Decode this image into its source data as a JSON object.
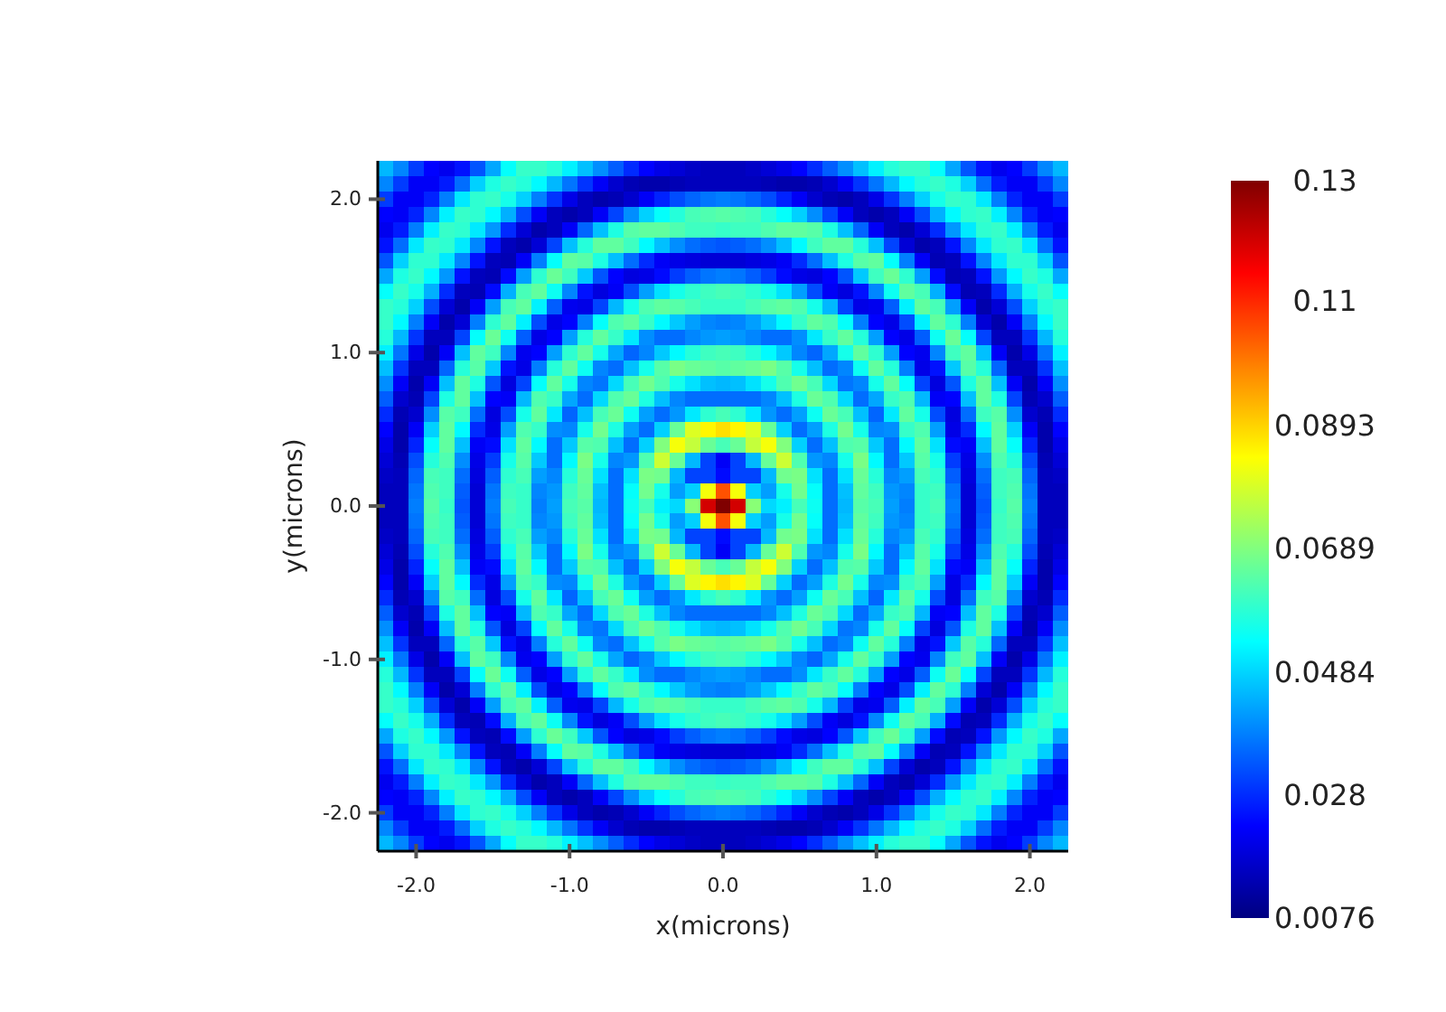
{
  "chart_data": {
    "type": "heatmap",
    "xlabel": "x(microns)",
    "ylabel": "y(microns)",
    "xlim": [
      -2.25,
      2.25
    ],
    "ylim": [
      -2.25,
      2.25
    ],
    "xticks": [
      {
        "value": -2,
        "label": "-2.0"
      },
      {
        "value": -1,
        "label": "-1.0"
      },
      {
        "value": 0,
        "label": "0.0"
      },
      {
        "value": 1,
        "label": "1.0"
      },
      {
        "value": 2,
        "label": "2.0"
      }
    ],
    "yticks": [
      {
        "value": -2,
        "label": "-2.0"
      },
      {
        "value": -1,
        "label": "-1.0"
      },
      {
        "value": 0,
        "label": "0.0"
      },
      {
        "value": 1,
        "label": "1.0"
      },
      {
        "value": 2,
        "label": "2.0"
      }
    ],
    "clim": [
      0.0076,
      0.13
    ],
    "cticks": [
      0.0076,
      0.028,
      0.0484,
      0.0689,
      0.0893,
      0.11,
      0.13
    ],
    "cells": [
      [
        0.045,
        0.039,
        0.03,
        0.023,
        0.021,
        0.025,
        0.033,
        0.043,
        0.054,
        0.06,
        0.06,
        0.058,
        0.052,
        0.046,
        0.04,
        0.034,
        0.028,
        0.023,
        0.02,
        0.018,
        0.016,
        0.015,
        0.015,
        0.015,
        0.016,
        0.018,
        0.02,
        0.023,
        0.028,
        0.034,
        0.04,
        0.046,
        0.052,
        0.058,
        0.06,
        0.06,
        0.054,
        0.043,
        0.033,
        0.025,
        0.021,
        0.023,
        0.03,
        0.039,
        0.045
      ],
      [
        0.039,
        0.03,
        0.022,
        0.022,
        0.026,
        0.036,
        0.048,
        0.057,
        0.06,
        0.058,
        0.053,
        0.045,
        0.037,
        0.029,
        0.022,
        0.017,
        0.014,
        0.013,
        0.013,
        0.014,
        0.015,
        0.015,
        0.015,
        0.015,
        0.015,
        0.014,
        0.013,
        0.013,
        0.014,
        0.017,
        0.022,
        0.029,
        0.037,
        0.045,
        0.053,
        0.058,
        0.06,
        0.057,
        0.048,
        0.036,
        0.026,
        0.022,
        0.022,
        0.03,
        0.039
      ],
      [
        0.03,
        0.022,
        0.022,
        0.027,
        0.038,
        0.051,
        0.059,
        0.06,
        0.056,
        0.048,
        0.038,
        0.029,
        0.02,
        0.015,
        0.013,
        0.014,
        0.017,
        0.022,
        0.027,
        0.032,
        0.035,
        0.037,
        0.038,
        0.037,
        0.035,
        0.032,
        0.027,
        0.022,
        0.017,
        0.014,
        0.013,
        0.015,
        0.02,
        0.029,
        0.038,
        0.048,
        0.056,
        0.06,
        0.059,
        0.051,
        0.038,
        0.027,
        0.022,
        0.022,
        0.03
      ],
      [
        0.023,
        0.022,
        0.027,
        0.039,
        0.052,
        0.06,
        0.059,
        0.053,
        0.044,
        0.032,
        0.022,
        0.015,
        0.013,
        0.015,
        0.022,
        0.031,
        0.04,
        0.048,
        0.054,
        0.058,
        0.062,
        0.063,
        0.064,
        0.063,
        0.062,
        0.058,
        0.054,
        0.048,
        0.04,
        0.031,
        0.022,
        0.015,
        0.013,
        0.015,
        0.022,
        0.032,
        0.044,
        0.053,
        0.059,
        0.06,
        0.052,
        0.039,
        0.027,
        0.022,
        0.023
      ],
      [
        0.021,
        0.026,
        0.038,
        0.052,
        0.06,
        0.059,
        0.051,
        0.041,
        0.028,
        0.018,
        0.013,
        0.015,
        0.022,
        0.035,
        0.046,
        0.057,
        0.064,
        0.065,
        0.065,
        0.063,
        0.061,
        0.061,
        0.06,
        0.061,
        0.061,
        0.063,
        0.065,
        0.065,
        0.064,
        0.057,
        0.046,
        0.035,
        0.022,
        0.015,
        0.013,
        0.018,
        0.028,
        0.041,
        0.051,
        0.059,
        0.06,
        0.052,
        0.038,
        0.026,
        0.021
      ],
      [
        0.025,
        0.036,
        0.051,
        0.06,
        0.059,
        0.051,
        0.039,
        0.025,
        0.015,
        0.013,
        0.018,
        0.031,
        0.046,
        0.058,
        0.065,
        0.065,
        0.061,
        0.053,
        0.046,
        0.04,
        0.036,
        0.034,
        0.033,
        0.034,
        0.036,
        0.04,
        0.046,
        0.053,
        0.061,
        0.065,
        0.065,
        0.058,
        0.046,
        0.031,
        0.018,
        0.013,
        0.015,
        0.025,
        0.039,
        0.051,
        0.059,
        0.06,
        0.051,
        0.036,
        0.025
      ],
      [
        0.033,
        0.048,
        0.059,
        0.059,
        0.051,
        0.039,
        0.025,
        0.015,
        0.014,
        0.022,
        0.038,
        0.054,
        0.065,
        0.064,
        0.057,
        0.046,
        0.036,
        0.028,
        0.022,
        0.02,
        0.019,
        0.018,
        0.018,
        0.018,
        0.019,
        0.02,
        0.022,
        0.028,
        0.036,
        0.046,
        0.057,
        0.064,
        0.065,
        0.054,
        0.038,
        0.022,
        0.014,
        0.015,
        0.025,
        0.039,
        0.051,
        0.059,
        0.059,
        0.048,
        0.033
      ],
      [
        0.043,
        0.057,
        0.06,
        0.053,
        0.041,
        0.025,
        0.015,
        0.014,
        0.024,
        0.042,
        0.059,
        0.066,
        0.061,
        0.047,
        0.033,
        0.023,
        0.019,
        0.02,
        0.024,
        0.03,
        0.034,
        0.037,
        0.038,
        0.037,
        0.034,
        0.03,
        0.024,
        0.02,
        0.019,
        0.023,
        0.033,
        0.047,
        0.061,
        0.066,
        0.059,
        0.042,
        0.024,
        0.014,
        0.015,
        0.025,
        0.041,
        0.053,
        0.06,
        0.057,
        0.043
      ],
      [
        0.054,
        0.06,
        0.056,
        0.044,
        0.028,
        0.015,
        0.014,
        0.024,
        0.044,
        0.062,
        0.065,
        0.055,
        0.039,
        0.025,
        0.019,
        0.022,
        0.032,
        0.042,
        0.05,
        0.056,
        0.059,
        0.061,
        0.062,
        0.061,
        0.059,
        0.056,
        0.05,
        0.042,
        0.032,
        0.022,
        0.019,
        0.025,
        0.039,
        0.055,
        0.065,
        0.062,
        0.044,
        0.024,
        0.014,
        0.015,
        0.028,
        0.044,
        0.056,
        0.06,
        0.054
      ],
      [
        0.06,
        0.058,
        0.048,
        0.032,
        0.018,
        0.013,
        0.022,
        0.042,
        0.062,
        0.065,
        0.052,
        0.034,
        0.021,
        0.02,
        0.031,
        0.045,
        0.056,
        0.063,
        0.065,
        0.064,
        0.062,
        0.06,
        0.06,
        0.06,
        0.062,
        0.064,
        0.065,
        0.063,
        0.056,
        0.045,
        0.031,
        0.02,
        0.021,
        0.034,
        0.052,
        0.065,
        0.062,
        0.042,
        0.022,
        0.013,
        0.018,
        0.032,
        0.048,
        0.058,
        0.06
      ],
      [
        0.06,
        0.053,
        0.038,
        0.022,
        0.013,
        0.018,
        0.038,
        0.059,
        0.065,
        0.052,
        0.032,
        0.02,
        0.023,
        0.038,
        0.054,
        0.063,
        0.065,
        0.06,
        0.053,
        0.047,
        0.042,
        0.039,
        0.038,
        0.039,
        0.042,
        0.047,
        0.053,
        0.06,
        0.065,
        0.063,
        0.054,
        0.038,
        0.023,
        0.02,
        0.032,
        0.052,
        0.065,
        0.059,
        0.038,
        0.018,
        0.013,
        0.022,
        0.038,
        0.053,
        0.06
      ],
      [
        0.058,
        0.045,
        0.029,
        0.015,
        0.015,
        0.031,
        0.054,
        0.066,
        0.055,
        0.034,
        0.02,
        0.023,
        0.042,
        0.058,
        0.065,
        0.06,
        0.051,
        0.04,
        0.036,
        0.036,
        0.039,
        0.041,
        0.042,
        0.041,
        0.039,
        0.036,
        0.036,
        0.04,
        0.051,
        0.06,
        0.065,
        0.058,
        0.042,
        0.023,
        0.02,
        0.034,
        0.055,
        0.066,
        0.054,
        0.031,
        0.015,
        0.015,
        0.029,
        0.045,
        0.058
      ],
      [
        0.052,
        0.037,
        0.02,
        0.013,
        0.022,
        0.046,
        0.065,
        0.061,
        0.039,
        0.021,
        0.023,
        0.042,
        0.059,
        0.065,
        0.056,
        0.043,
        0.035,
        0.039,
        0.047,
        0.053,
        0.058,
        0.061,
        0.062,
        0.061,
        0.058,
        0.053,
        0.047,
        0.039,
        0.035,
        0.043,
        0.056,
        0.065,
        0.059,
        0.042,
        0.023,
        0.021,
        0.039,
        0.061,
        0.065,
        0.046,
        0.022,
        0.013,
        0.02,
        0.037,
        0.052
      ],
      [
        0.046,
        0.029,
        0.015,
        0.015,
        0.035,
        0.058,
        0.064,
        0.047,
        0.025,
        0.02,
        0.038,
        0.058,
        0.065,
        0.055,
        0.039,
        0.036,
        0.046,
        0.056,
        0.064,
        0.068,
        0.066,
        0.065,
        0.064,
        0.065,
        0.066,
        0.068,
        0.064,
        0.056,
        0.046,
        0.036,
        0.039,
        0.055,
        0.065,
        0.058,
        0.038,
        0.02,
        0.025,
        0.047,
        0.064,
        0.058,
        0.035,
        0.015,
        0.015,
        0.029,
        0.046
      ],
      [
        0.04,
        0.022,
        0.013,
        0.022,
        0.046,
        0.065,
        0.057,
        0.033,
        0.019,
        0.031,
        0.054,
        0.065,
        0.056,
        0.039,
        0.037,
        0.049,
        0.062,
        0.067,
        0.063,
        0.056,
        0.05,
        0.046,
        0.045,
        0.046,
        0.05,
        0.056,
        0.063,
        0.067,
        0.062,
        0.049,
        0.037,
        0.039,
        0.056,
        0.065,
        0.054,
        0.031,
        0.019,
        0.033,
        0.057,
        0.065,
        0.046,
        0.022,
        0.013,
        0.022,
        0.04
      ],
      [
        0.034,
        0.017,
        0.014,
        0.031,
        0.057,
        0.065,
        0.046,
        0.023,
        0.022,
        0.045,
        0.063,
        0.06,
        0.043,
        0.036,
        0.049,
        0.063,
        0.066,
        0.057,
        0.046,
        0.039,
        0.036,
        0.036,
        0.036,
        0.036,
        0.036,
        0.039,
        0.046,
        0.057,
        0.066,
        0.063,
        0.049,
        0.036,
        0.043,
        0.06,
        0.063,
        0.045,
        0.022,
        0.023,
        0.046,
        0.065,
        0.057,
        0.031,
        0.014,
        0.017,
        0.034
      ],
      [
        0.028,
        0.014,
        0.017,
        0.04,
        0.064,
        0.061,
        0.036,
        0.019,
        0.032,
        0.056,
        0.065,
        0.051,
        0.035,
        0.046,
        0.062,
        0.066,
        0.055,
        0.042,
        0.036,
        0.041,
        0.051,
        0.059,
        0.062,
        0.059,
        0.051,
        0.041,
        0.036,
        0.042,
        0.055,
        0.066,
        0.062,
        0.046,
        0.035,
        0.051,
        0.065,
        0.056,
        0.032,
        0.019,
        0.036,
        0.061,
        0.064,
        0.04,
        0.017,
        0.014,
        0.028
      ],
      [
        0.023,
        0.013,
        0.022,
        0.048,
        0.065,
        0.053,
        0.028,
        0.02,
        0.042,
        0.063,
        0.06,
        0.04,
        0.039,
        0.056,
        0.067,
        0.057,
        0.042,
        0.036,
        0.048,
        0.066,
        0.08,
        0.085,
        0.088,
        0.085,
        0.08,
        0.066,
        0.048,
        0.036,
        0.042,
        0.057,
        0.067,
        0.056,
        0.039,
        0.04,
        0.06,
        0.063,
        0.042,
        0.02,
        0.028,
        0.053,
        0.065,
        0.048,
        0.022,
        0.013,
        0.023
      ],
      [
        0.02,
        0.013,
        0.027,
        0.054,
        0.065,
        0.046,
        0.022,
        0.024,
        0.05,
        0.065,
        0.053,
        0.036,
        0.047,
        0.064,
        0.063,
        0.046,
        0.036,
        0.048,
        0.069,
        0.083,
        0.077,
        0.066,
        0.062,
        0.066,
        0.077,
        0.083,
        0.069,
        0.048,
        0.036,
        0.046,
        0.063,
        0.064,
        0.047,
        0.036,
        0.053,
        0.065,
        0.05,
        0.024,
        0.022,
        0.046,
        0.065,
        0.054,
        0.027,
        0.013,
        0.02
      ],
      [
        0.018,
        0.014,
        0.032,
        0.058,
        0.063,
        0.04,
        0.02,
        0.03,
        0.056,
        0.064,
        0.047,
        0.036,
        0.053,
        0.068,
        0.056,
        0.039,
        0.041,
        0.063,
        0.078,
        0.066,
        0.045,
        0.031,
        0.022,
        0.031,
        0.045,
        0.066,
        0.078,
        0.063,
        0.041,
        0.039,
        0.056,
        0.068,
        0.053,
        0.036,
        0.047,
        0.064,
        0.056,
        0.03,
        0.02,
        0.04,
        0.063,
        0.058,
        0.032,
        0.014,
        0.018
      ],
      [
        0.016,
        0.015,
        0.035,
        0.062,
        0.061,
        0.036,
        0.019,
        0.034,
        0.059,
        0.062,
        0.042,
        0.039,
        0.058,
        0.066,
        0.05,
        0.036,
        0.05,
        0.068,
        0.067,
        0.045,
        0.031,
        0.031,
        0.024,
        0.031,
        0.031,
        0.045,
        0.067,
        0.068,
        0.05,
        0.036,
        0.05,
        0.066,
        0.058,
        0.039,
        0.042,
        0.062,
        0.059,
        0.034,
        0.019,
        0.036,
        0.061,
        0.062,
        0.035,
        0.015,
        0.016
      ],
      [
        0.015,
        0.015,
        0.037,
        0.063,
        0.061,
        0.034,
        0.018,
        0.037,
        0.061,
        0.06,
        0.039,
        0.041,
        0.061,
        0.065,
        0.046,
        0.036,
        0.054,
        0.067,
        0.056,
        0.042,
        0.048,
        0.083,
        0.105,
        0.083,
        0.048,
        0.042,
        0.056,
        0.067,
        0.054,
        0.036,
        0.046,
        0.065,
        0.061,
        0.041,
        0.039,
        0.06,
        0.061,
        0.037,
        0.018,
        0.034,
        0.061,
        0.063,
        0.037,
        0.015,
        0.015
      ],
      [
        0.015,
        0.015,
        0.038,
        0.064,
        0.06,
        0.033,
        0.018,
        0.038,
        0.062,
        0.06,
        0.038,
        0.042,
        0.062,
        0.064,
        0.045,
        0.036,
        0.055,
        0.062,
        0.052,
        0.049,
        0.07,
        0.12,
        0.13,
        0.12,
        0.07,
        0.049,
        0.052,
        0.062,
        0.055,
        0.036,
        0.045,
        0.064,
        0.062,
        0.042,
        0.038,
        0.06,
        0.062,
        0.038,
        0.018,
        0.033,
        0.06,
        0.064,
        0.038,
        0.015,
        0.015
      ],
      [
        0.015,
        0.015,
        0.037,
        0.063,
        0.061,
        0.034,
        0.018,
        0.037,
        0.061,
        0.06,
        0.039,
        0.041,
        0.061,
        0.065,
        0.046,
        0.036,
        0.054,
        0.067,
        0.056,
        0.042,
        0.048,
        0.083,
        0.105,
        0.083,
        0.048,
        0.042,
        0.056,
        0.067,
        0.054,
        0.036,
        0.046,
        0.065,
        0.061,
        0.041,
        0.039,
        0.06,
        0.061,
        0.037,
        0.018,
        0.034,
        0.061,
        0.063,
        0.037,
        0.015,
        0.015
      ],
      [
        0.016,
        0.015,
        0.035,
        0.062,
        0.061,
        0.036,
        0.019,
        0.034,
        0.059,
        0.062,
        0.042,
        0.039,
        0.058,
        0.066,
        0.05,
        0.036,
        0.05,
        0.068,
        0.067,
        0.045,
        0.031,
        0.031,
        0.024,
        0.031,
        0.031,
        0.045,
        0.067,
        0.068,
        0.05,
        0.036,
        0.05,
        0.066,
        0.058,
        0.039,
        0.042,
        0.062,
        0.059,
        0.034,
        0.019,
        0.036,
        0.061,
        0.062,
        0.035,
        0.015,
        0.016
      ],
      [
        0.018,
        0.014,
        0.032,
        0.058,
        0.063,
        0.04,
        0.02,
        0.03,
        0.056,
        0.064,
        0.047,
        0.036,
        0.053,
        0.068,
        0.056,
        0.039,
        0.041,
        0.063,
        0.078,
        0.066,
        0.045,
        0.031,
        0.022,
        0.031,
        0.045,
        0.066,
        0.078,
        0.063,
        0.041,
        0.039,
        0.056,
        0.068,
        0.053,
        0.036,
        0.047,
        0.064,
        0.056,
        0.03,
        0.02,
        0.04,
        0.063,
        0.058,
        0.032,
        0.014,
        0.018
      ],
      [
        0.02,
        0.013,
        0.027,
        0.054,
        0.065,
        0.046,
        0.022,
        0.024,
        0.05,
        0.065,
        0.053,
        0.036,
        0.047,
        0.064,
        0.063,
        0.046,
        0.036,
        0.048,
        0.069,
        0.083,
        0.077,
        0.066,
        0.062,
        0.066,
        0.077,
        0.083,
        0.069,
        0.048,
        0.036,
        0.046,
        0.063,
        0.064,
        0.047,
        0.036,
        0.053,
        0.065,
        0.05,
        0.024,
        0.022,
        0.046,
        0.065,
        0.054,
        0.027,
        0.013,
        0.02
      ],
      [
        0.023,
        0.013,
        0.022,
        0.048,
        0.065,
        0.053,
        0.028,
        0.02,
        0.042,
        0.063,
        0.06,
        0.04,
        0.039,
        0.056,
        0.067,
        0.057,
        0.042,
        0.036,
        0.048,
        0.066,
        0.08,
        0.085,
        0.088,
        0.085,
        0.08,
        0.066,
        0.048,
        0.036,
        0.042,
        0.057,
        0.067,
        0.056,
        0.039,
        0.04,
        0.06,
        0.063,
        0.042,
        0.02,
        0.028,
        0.053,
        0.065,
        0.048,
        0.022,
        0.013,
        0.023
      ],
      [
        0.028,
        0.014,
        0.017,
        0.04,
        0.064,
        0.061,
        0.036,
        0.019,
        0.032,
        0.056,
        0.065,
        0.051,
        0.035,
        0.046,
        0.062,
        0.066,
        0.055,
        0.042,
        0.036,
        0.041,
        0.051,
        0.059,
        0.062,
        0.059,
        0.051,
        0.041,
        0.036,
        0.042,
        0.055,
        0.066,
        0.062,
        0.046,
        0.035,
        0.051,
        0.065,
        0.056,
        0.032,
        0.019,
        0.036,
        0.061,
        0.064,
        0.04,
        0.017,
        0.014,
        0.028
      ],
      [
        0.034,
        0.017,
        0.014,
        0.031,
        0.057,
        0.065,
        0.046,
        0.023,
        0.022,
        0.045,
        0.063,
        0.06,
        0.043,
        0.036,
        0.049,
        0.063,
        0.066,
        0.057,
        0.046,
        0.039,
        0.036,
        0.036,
        0.036,
        0.036,
        0.036,
        0.039,
        0.046,
        0.057,
        0.066,
        0.063,
        0.049,
        0.036,
        0.043,
        0.06,
        0.063,
        0.045,
        0.022,
        0.023,
        0.046,
        0.065,
        0.057,
        0.031,
        0.014,
        0.017,
        0.034
      ],
      [
        0.04,
        0.022,
        0.013,
        0.022,
        0.046,
        0.065,
        0.057,
        0.033,
        0.019,
        0.031,
        0.054,
        0.065,
        0.056,
        0.039,
        0.037,
        0.049,
        0.062,
        0.067,
        0.063,
        0.056,
        0.05,
        0.046,
        0.045,
        0.046,
        0.05,
        0.056,
        0.063,
        0.067,
        0.062,
        0.049,
        0.037,
        0.039,
        0.056,
        0.065,
        0.054,
        0.031,
        0.019,
        0.033,
        0.057,
        0.065,
        0.046,
        0.022,
        0.013,
        0.022,
        0.04
      ],
      [
        0.046,
        0.029,
        0.015,
        0.015,
        0.035,
        0.058,
        0.064,
        0.047,
        0.025,
        0.02,
        0.038,
        0.058,
        0.065,
        0.055,
        0.039,
        0.036,
        0.046,
        0.056,
        0.064,
        0.068,
        0.066,
        0.065,
        0.064,
        0.065,
        0.066,
        0.068,
        0.064,
        0.056,
        0.046,
        0.036,
        0.039,
        0.055,
        0.065,
        0.058,
        0.038,
        0.02,
        0.025,
        0.047,
        0.064,
        0.058,
        0.035,
        0.015,
        0.015,
        0.029,
        0.046
      ],
      [
        0.052,
        0.037,
        0.02,
        0.013,
        0.022,
        0.046,
        0.065,
        0.061,
        0.039,
        0.021,
        0.023,
        0.042,
        0.059,
        0.065,
        0.056,
        0.043,
        0.035,
        0.039,
        0.047,
        0.053,
        0.058,
        0.061,
        0.062,
        0.061,
        0.058,
        0.053,
        0.047,
        0.039,
        0.035,
        0.043,
        0.056,
        0.065,
        0.059,
        0.042,
        0.023,
        0.021,
        0.039,
        0.061,
        0.065,
        0.046,
        0.022,
        0.013,
        0.02,
        0.037,
        0.052
      ],
      [
        0.058,
        0.045,
        0.029,
        0.015,
        0.015,
        0.031,
        0.054,
        0.066,
        0.055,
        0.034,
        0.02,
        0.023,
        0.042,
        0.058,
        0.065,
        0.06,
        0.051,
        0.04,
        0.036,
        0.036,
        0.039,
        0.041,
        0.042,
        0.041,
        0.039,
        0.036,
        0.036,
        0.04,
        0.051,
        0.06,
        0.065,
        0.058,
        0.042,
        0.023,
        0.02,
        0.034,
        0.055,
        0.066,
        0.054,
        0.031,
        0.015,
        0.015,
        0.029,
        0.045,
        0.058
      ],
      [
        0.06,
        0.053,
        0.038,
        0.022,
        0.013,
        0.018,
        0.038,
        0.059,
        0.065,
        0.052,
        0.032,
        0.02,
        0.023,
        0.038,
        0.054,
        0.063,
        0.065,
        0.06,
        0.053,
        0.047,
        0.042,
        0.039,
        0.038,
        0.039,
        0.042,
        0.047,
        0.053,
        0.06,
        0.065,
        0.063,
        0.054,
        0.038,
        0.023,
        0.02,
        0.032,
        0.052,
        0.065,
        0.059,
        0.038,
        0.018,
        0.013,
        0.022,
        0.038,
        0.053,
        0.06
      ],
      [
        0.06,
        0.058,
        0.048,
        0.032,
        0.018,
        0.013,
        0.022,
        0.042,
        0.062,
        0.065,
        0.052,
        0.034,
        0.021,
        0.02,
        0.031,
        0.045,
        0.056,
        0.063,
        0.065,
        0.064,
        0.062,
        0.06,
        0.06,
        0.06,
        0.062,
        0.064,
        0.065,
        0.063,
        0.056,
        0.045,
        0.031,
        0.02,
        0.021,
        0.034,
        0.052,
        0.065,
        0.062,
        0.042,
        0.022,
        0.013,
        0.018,
        0.032,
        0.048,
        0.058,
        0.06
      ],
      [
        0.054,
        0.06,
        0.056,
        0.044,
        0.028,
        0.015,
        0.014,
        0.024,
        0.044,
        0.062,
        0.065,
        0.055,
        0.039,
        0.025,
        0.019,
        0.022,
        0.032,
        0.042,
        0.05,
        0.056,
        0.059,
        0.061,
        0.062,
        0.061,
        0.059,
        0.056,
        0.05,
        0.042,
        0.032,
        0.022,
        0.019,
        0.025,
        0.039,
        0.055,
        0.065,
        0.062,
        0.044,
        0.024,
        0.014,
        0.015,
        0.028,
        0.044,
        0.056,
        0.06,
        0.054
      ],
      [
        0.043,
        0.057,
        0.06,
        0.053,
        0.041,
        0.025,
        0.015,
        0.014,
        0.024,
        0.042,
        0.059,
        0.066,
        0.061,
        0.047,
        0.033,
        0.023,
        0.019,
        0.02,
        0.024,
        0.03,
        0.034,
        0.037,
        0.038,
        0.037,
        0.034,
        0.03,
        0.024,
        0.02,
        0.019,
        0.023,
        0.033,
        0.047,
        0.061,
        0.066,
        0.059,
        0.042,
        0.024,
        0.014,
        0.015,
        0.025,
        0.041,
        0.053,
        0.06,
        0.057,
        0.043
      ],
      [
        0.033,
        0.048,
        0.059,
        0.059,
        0.051,
        0.039,
        0.025,
        0.015,
        0.014,
        0.022,
        0.038,
        0.054,
        0.065,
        0.064,
        0.057,
        0.046,
        0.036,
        0.028,
        0.022,
        0.02,
        0.019,
        0.018,
        0.018,
        0.018,
        0.019,
        0.02,
        0.022,
        0.028,
        0.036,
        0.046,
        0.057,
        0.064,
        0.065,
        0.054,
        0.038,
        0.022,
        0.014,
        0.015,
        0.025,
        0.039,
        0.051,
        0.059,
        0.059,
        0.048,
        0.033
      ],
      [
        0.025,
        0.036,
        0.051,
        0.06,
        0.059,
        0.051,
        0.039,
        0.025,
        0.015,
        0.013,
        0.018,
        0.031,
        0.046,
        0.058,
        0.065,
        0.065,
        0.061,
        0.053,
        0.046,
        0.04,
        0.036,
        0.034,
        0.033,
        0.034,
        0.036,
        0.04,
        0.046,
        0.053,
        0.061,
        0.065,
        0.065,
        0.058,
        0.046,
        0.031,
        0.018,
        0.013,
        0.015,
        0.025,
        0.039,
        0.051,
        0.059,
        0.06,
        0.051,
        0.036,
        0.025
      ],
      [
        0.021,
        0.026,
        0.038,
        0.052,
        0.06,
        0.059,
        0.051,
        0.041,
        0.028,
        0.018,
        0.013,
        0.015,
        0.022,
        0.035,
        0.046,
        0.057,
        0.064,
        0.065,
        0.065,
        0.063,
        0.061,
        0.061,
        0.06,
        0.061,
        0.061,
        0.063,
        0.065,
        0.065,
        0.064,
        0.057,
        0.046,
        0.035,
        0.022,
        0.015,
        0.013,
        0.018,
        0.028,
        0.041,
        0.051,
        0.059,
        0.06,
        0.052,
        0.038,
        0.026,
        0.021
      ],
      [
        0.023,
        0.022,
        0.027,
        0.039,
        0.052,
        0.06,
        0.059,
        0.053,
        0.044,
        0.032,
        0.022,
        0.015,
        0.013,
        0.015,
        0.022,
        0.031,
        0.04,
        0.048,
        0.054,
        0.058,
        0.062,
        0.063,
        0.064,
        0.063,
        0.062,
        0.058,
        0.054,
        0.048,
        0.04,
        0.031,
        0.022,
        0.015,
        0.013,
        0.015,
        0.022,
        0.032,
        0.044,
        0.053,
        0.059,
        0.06,
        0.052,
        0.039,
        0.027,
        0.022,
        0.023
      ],
      [
        0.03,
        0.022,
        0.022,
        0.027,
        0.038,
        0.051,
        0.059,
        0.06,
        0.056,
        0.048,
        0.038,
        0.029,
        0.02,
        0.015,
        0.013,
        0.014,
        0.017,
        0.022,
        0.027,
        0.032,
        0.035,
        0.037,
        0.038,
        0.037,
        0.035,
        0.032,
        0.027,
        0.022,
        0.017,
        0.014,
        0.013,
        0.015,
        0.02,
        0.029,
        0.038,
        0.048,
        0.056,
        0.06,
        0.059,
        0.051,
        0.038,
        0.027,
        0.022,
        0.022,
        0.03
      ],
      [
        0.039,
        0.03,
        0.022,
        0.022,
        0.026,
        0.036,
        0.048,
        0.057,
        0.06,
        0.058,
        0.053,
        0.045,
        0.037,
        0.029,
        0.022,
        0.017,
        0.014,
        0.013,
        0.013,
        0.014,
        0.015,
        0.015,
        0.015,
        0.015,
        0.015,
        0.014,
        0.013,
        0.013,
        0.014,
        0.017,
        0.022,
        0.029,
        0.037,
        0.045,
        0.053,
        0.058,
        0.06,
        0.057,
        0.048,
        0.036,
        0.026,
        0.022,
        0.022,
        0.03,
        0.039
      ],
      [
        0.045,
        0.039,
        0.03,
        0.023,
        0.021,
        0.025,
        0.033,
        0.043,
        0.054,
        0.06,
        0.06,
        0.058,
        0.052,
        0.046,
        0.04,
        0.034,
        0.028,
        0.023,
        0.02,
        0.018,
        0.016,
        0.015,
        0.015,
        0.015,
        0.016,
        0.018,
        0.02,
        0.023,
        0.028,
        0.034,
        0.04,
        0.046,
        0.052,
        0.058,
        0.06,
        0.06,
        0.054,
        0.043,
        0.033,
        0.025,
        0.021,
        0.023,
        0.03,
        0.039,
        0.045
      ]
    ]
  }
}
